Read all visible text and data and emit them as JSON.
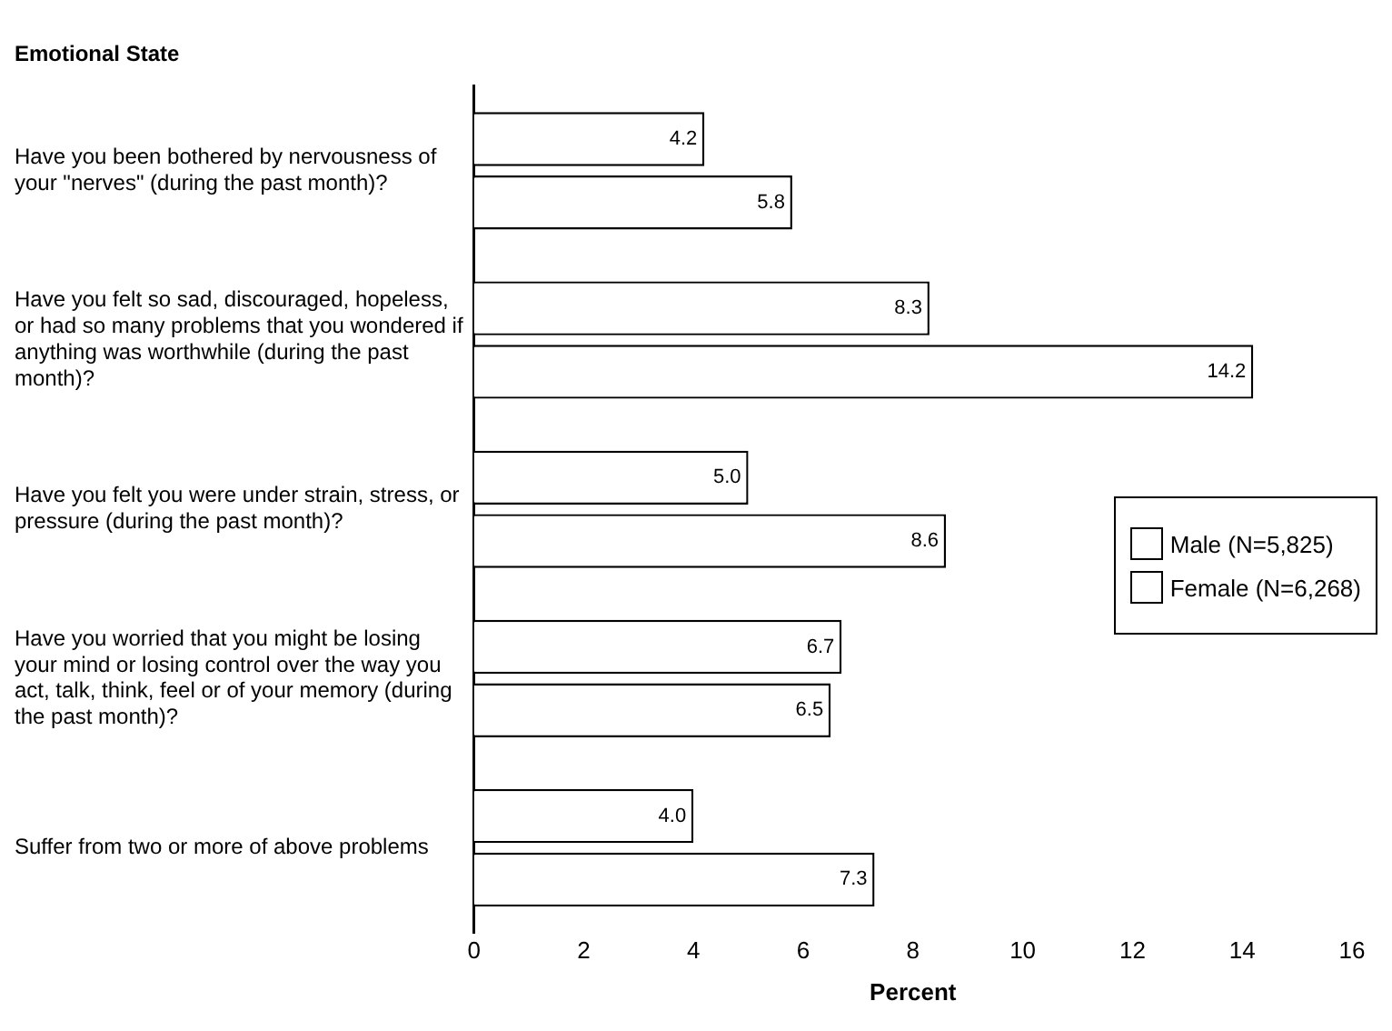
{
  "chart_data": {
    "type": "bar",
    "orientation": "horizontal",
    "title": "Emotional State",
    "xlabel": "Percent",
    "categories": [
      "Have you been bothered by nervousness of your \"nerves\" (during the past month)?",
      "Have you felt so sad, discouraged, hopeless, or had so many problems that you wondered if anything was worthwhile (during the past month)?",
      "Have you felt you were under strain, stress, or pressure (during the past month)?",
      "Have you worried that you might be losing your mind or losing control over the way you act, talk, think, feel or of your memory (during the past month)?",
      "Suffer from two or more of above problems"
    ],
    "series": [
      {
        "name": "Male (N=5,825)",
        "color": "#ffffff",
        "values": [
          4.2,
          8.3,
          5.0,
          6.7,
          4.0
        ],
        "value_labels": [
          "4.2",
          "8.3",
          "5.0",
          "6.7",
          "4.0"
        ]
      },
      {
        "name": "Female (N=6,268)",
        "color": "#ffffff",
        "values": [
          5.8,
          14.2,
          8.6,
          6.5,
          7.3
        ],
        "value_labels": [
          "5.8",
          "14.2",
          "8.6",
          "6.5",
          "7.3"
        ]
      }
    ],
    "xlim": [
      0,
      16
    ],
    "xticks": [
      0,
      2,
      4,
      6,
      8,
      10,
      12,
      14,
      16
    ],
    "grid": false,
    "legend": "right"
  }
}
